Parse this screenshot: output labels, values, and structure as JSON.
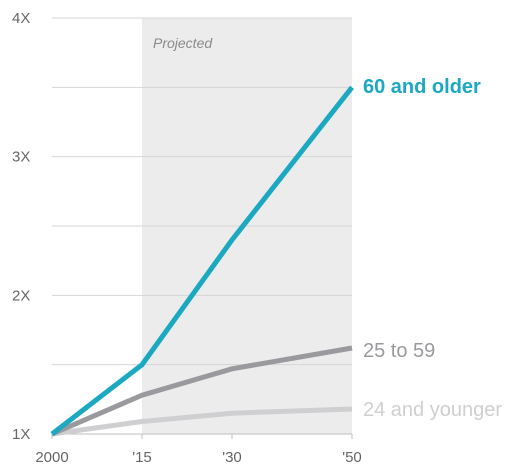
{
  "chart_data": {
    "type": "line",
    "x": [
      2000,
      2015,
      2030,
      2050
    ],
    "x_tick_labels": [
      "2000",
      "'15",
      "'30",
      "'50"
    ],
    "y_tick_values": [
      1,
      2,
      3,
      4
    ],
    "y_tick_labels": [
      "1X",
      "2X",
      "3X",
      "4X"
    ],
    "ylim": [
      1,
      4
    ],
    "grid": "horizontal",
    "annotation": {
      "text": "Projected",
      "x_start": 2015,
      "x_end": 2050
    },
    "series": [
      {
        "name": "60 and older",
        "color": "#1ba8c1",
        "values": [
          1.0,
          1.5,
          2.4,
          3.5
        ]
      },
      {
        "name": "25 to 59",
        "color": "#9a9a9e",
        "values": [
          1.0,
          1.28,
          1.47,
          1.62
        ]
      },
      {
        "name": "24 and younger",
        "color": "#cfcfd1",
        "values": [
          1.0,
          1.09,
          1.15,
          1.18
        ]
      }
    ]
  }
}
